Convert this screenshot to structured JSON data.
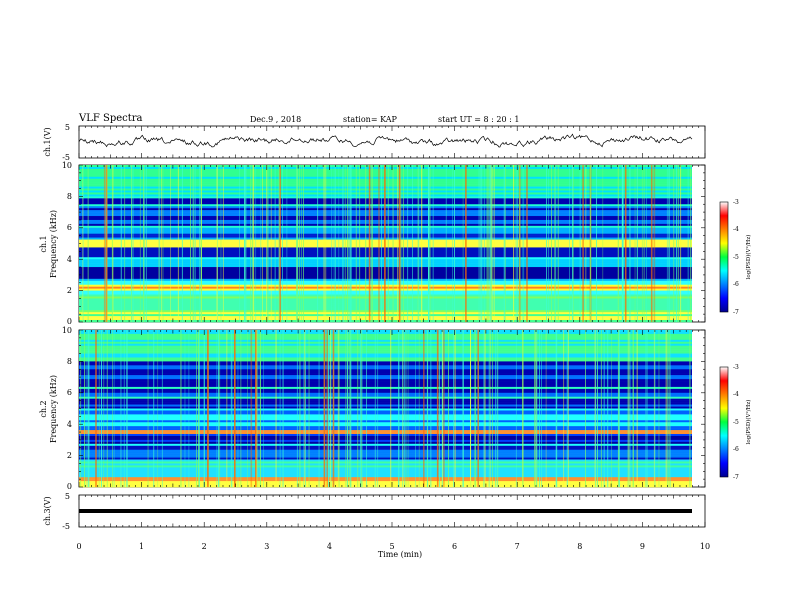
{
  "header": {
    "title": "VLF Spectra",
    "date": "Dec.9 , 2018",
    "station": "station= KAP",
    "start": "start UT = 8 : 20 : 1"
  },
  "chart_data": [
    {
      "id": "ch1-waveform",
      "type": "line",
      "ylabel": "ch.1(V)",
      "ylim": [
        -5,
        5
      ],
      "yticks": [
        5,
        -5
      ],
      "xlim": [
        0,
        10
      ],
      "series": [
        {
          "values_description_only": false,
          "x_range": [
            0,
            9.8
          ],
          "baseline": 0.5,
          "amplitude": 1.5
        }
      ]
    },
    {
      "id": "ch1-spectrogram",
      "type": "heatmap",
      "ylabel": "ch.1\nFrequency (kHz)",
      "ylim": [
        0,
        10
      ],
      "yticks": [
        0,
        2,
        4,
        6,
        8,
        10
      ],
      "xlim": [
        0,
        10
      ],
      "x_data_end": 9.8,
      "colorbar": {
        "label": "log(PSD)(V²/Hz)",
        "range": [
          -7,
          -3
        ],
        "ticks": [
          -3,
          -4,
          -5,
          -6,
          -7
        ]
      }
    },
    {
      "id": "ch2-spectrogram",
      "type": "heatmap",
      "ylabel": "ch.2\nFrequency (kHz)",
      "ylim": [
        0,
        10
      ],
      "yticks": [
        0,
        2,
        4,
        6,
        8,
        10
      ],
      "xlim": [
        0,
        10
      ],
      "x_data_end": 9.8,
      "colorbar": {
        "label": "log(PSD)(V²/Hz)",
        "range": [
          -7,
          -3
        ],
        "ticks": [
          -3,
          -4,
          -5,
          -6,
          -7
        ]
      }
    },
    {
      "id": "ch3-waveform",
      "type": "line",
      "ylabel": "ch.3(V)",
      "ylim": [
        -5,
        5
      ],
      "yticks": [
        5,
        -5
      ],
      "xlim": [
        0,
        10
      ],
      "xlabel": "Time (min)",
      "xticks": [
        0,
        1,
        2,
        3,
        4,
        5,
        6,
        7,
        8,
        9,
        10
      ],
      "series": [
        {
          "x_range": [
            0,
            9.8
          ],
          "baseline": 0,
          "amplitude": 0
        }
      ]
    }
  ],
  "colors": {
    "background": "#ffffff",
    "axis": "#000000",
    "spec_low": "#00008f",
    "spec_high": "#8f0000"
  }
}
